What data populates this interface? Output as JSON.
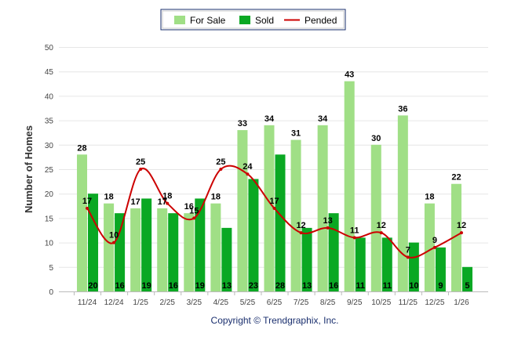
{
  "chart_data": {
    "type": "bar",
    "title": "",
    "xlabel": "",
    "ylabel": "Number of Homes",
    "ylim": [
      0,
      50
    ],
    "yticks": [
      0,
      5,
      10,
      15,
      20,
      25,
      30,
      35,
      40,
      45,
      50
    ],
    "grid": true,
    "legend_position": "top-center",
    "categories": [
      "11/24",
      "12/24",
      "1/25",
      "2/25",
      "3/25",
      "4/25",
      "5/25",
      "6/25",
      "7/25",
      "8/25",
      "9/25",
      "10/25",
      "11/25",
      "12/25",
      "1/26"
    ],
    "series": [
      {
        "name": "For Sale",
        "type": "bar",
        "color": "#a0df86",
        "values": [
          28,
          18,
          17,
          17,
          16,
          18,
          33,
          34,
          31,
          34,
          43,
          30,
          36,
          18,
          22
        ]
      },
      {
        "name": "Sold",
        "type": "bar",
        "color": "#0aa823",
        "values": [
          20,
          16,
          19,
          16,
          19,
          13,
          23,
          28,
          13,
          16,
          11,
          11,
          10,
          9,
          5
        ]
      },
      {
        "name": "Pended",
        "type": "line",
        "color": "#cc0000",
        "values": [
          17,
          10,
          25,
          18,
          15,
          25,
          24,
          17,
          12,
          13,
          11,
          12,
          7,
          9,
          12
        ]
      }
    ],
    "footer": "Copyright © Trendgraphix, Inc."
  }
}
